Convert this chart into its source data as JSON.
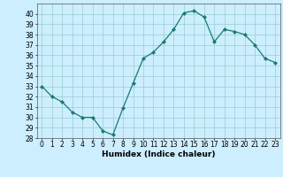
{
  "x": [
    0,
    1,
    2,
    3,
    4,
    5,
    6,
    7,
    8,
    9,
    10,
    11,
    12,
    13,
    14,
    15,
    16,
    17,
    18,
    19,
    20,
    21,
    22,
    23
  ],
  "y": [
    33,
    32,
    31.5,
    30.5,
    30,
    30,
    28.7,
    28.3,
    30.9,
    33.3,
    35.7,
    36.3,
    37.3,
    38.5,
    40.1,
    40.3,
    39.7,
    37.3,
    38.5,
    38.3,
    38.0,
    37.0,
    35.7,
    35.3
  ],
  "xlabel": "Humidex (Indice chaleur)",
  "xlim": [
    -0.5,
    23.5
  ],
  "ylim": [
    28,
    41
  ],
  "yticks": [
    28,
    29,
    30,
    31,
    32,
    33,
    34,
    35,
    36,
    37,
    38,
    39,
    40
  ],
  "xticks": [
    0,
    1,
    2,
    3,
    4,
    5,
    6,
    7,
    8,
    9,
    10,
    11,
    12,
    13,
    14,
    15,
    16,
    17,
    18,
    19,
    20,
    21,
    22,
    23
  ],
  "line_color": "#1a7a6e",
  "marker_color": "#1a7a6e",
  "bg_color": "#cceeff",
  "grid_color": "#99cccc",
  "label_fontsize": 6.5,
  "tick_fontsize": 5.5
}
